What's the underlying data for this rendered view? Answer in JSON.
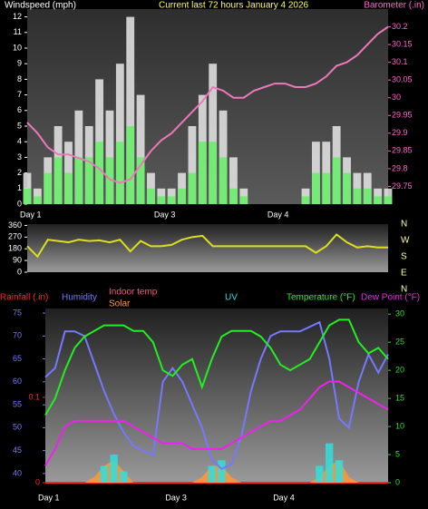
{
  "chart_data": [
    {
      "type": "bar",
      "title": "Current last 72 hours January 4 2026",
      "y_label": "Windspeed (mph)",
      "y2_label": "Barometer (.in)",
      "categories": [
        "Day 1",
        null,
        null,
        null,
        null,
        null,
        null,
        null,
        null,
        null,
        null,
        null,
        null,
        "Day 3",
        null,
        null,
        null,
        null,
        null,
        null,
        null,
        null,
        null,
        null,
        "Day 4",
        null,
        null,
        null,
        null,
        null,
        null,
        null,
        null,
        null,
        null,
        null
      ],
      "ylim": [
        0,
        12.5
      ],
      "yticks": [
        0,
        1,
        2,
        3,
        4,
        5,
        6,
        7,
        8,
        9,
        10,
        11,
        12
      ],
      "y_color": "#ffffff",
      "y2lim": [
        29.7,
        30.25
      ],
      "y2ticks": [
        29.75,
        29.8,
        29.85,
        29.9,
        29.95,
        30,
        30.05,
        30.1,
        30.15,
        30.2
      ],
      "y2_color": "#ff66cc",
      "series": [
        {
          "style": "bar",
          "color": "#e8e8e8",
          "values": [
            2,
            1,
            3,
            5,
            4,
            6,
            5,
            8,
            6,
            9,
            12,
            7,
            2,
            1,
            1,
            2,
            5,
            7,
            9,
            6,
            3,
            1,
            0,
            0,
            0,
            0,
            0,
            1,
            4,
            4,
            5,
            3,
            2,
            2,
            1,
            1
          ]
        },
        {
          "style": "bar",
          "color": "#66ee66",
          "values": [
            1,
            0.5,
            2,
            3,
            2,
            3,
            3,
            4,
            3,
            4,
            5,
            3,
            1,
            0.5,
            0.5,
            1,
            2,
            4,
            4,
            3,
            1,
            0.5,
            0,
            0,
            0,
            0,
            0,
            0.5,
            2,
            2,
            3,
            2,
            1,
            1,
            0.5,
            0.5
          ]
        },
        {
          "style": "line",
          "axis": "y2",
          "color": "#ee77bb",
          "values": [
            29.93,
            29.9,
            29.86,
            29.84,
            29.84,
            29.83,
            29.82,
            29.8,
            29.77,
            29.76,
            29.77,
            29.81,
            29.85,
            29.88,
            29.9,
            29.93,
            29.96,
            29.99,
            30.03,
            30.02,
            30.0,
            30.0,
            30.02,
            30.03,
            30.04,
            30.04,
            30.03,
            30.03,
            30.04,
            30.06,
            30.09,
            30.1,
            30.12,
            30.15,
            30.18,
            30.2
          ]
        }
      ]
    },
    {
      "type": "line",
      "categories": [
        "Day 1",
        null,
        null,
        null,
        null,
        null,
        null,
        null,
        null,
        null,
        null,
        null,
        null,
        "Day 3",
        null,
        null,
        null,
        null,
        null,
        null,
        null,
        null,
        null,
        null,
        "Day 4",
        null,
        null,
        null,
        null,
        null,
        null,
        null,
        null,
        null,
        null,
        null
      ],
      "ylim": [
        0,
        370
      ],
      "yticks": [
        0,
        90,
        180,
        270,
        360
      ],
      "y_color": "#ffffff",
      "compass": [
        "N",
        "W",
        "S",
        "E",
        "N"
      ],
      "compass_color": "#ffff99",
      "series": [
        {
          "style": "line",
          "color": "#dddd22",
          "values": [
            200,
            120,
            250,
            240,
            230,
            250,
            240,
            245,
            230,
            250,
            160,
            240,
            200,
            200,
            210,
            250,
            270,
            280,
            200,
            200,
            200,
            200,
            200,
            200,
            200,
            200,
            200,
            200,
            150,
            200,
            290,
            230,
            190,
            200,
            190,
            190
          ]
        }
      ]
    },
    {
      "type": "line",
      "categories": [
        "Day 1",
        null,
        null,
        null,
        null,
        null,
        null,
        null,
        null,
        null,
        null,
        null,
        null,
        "Day 3",
        null,
        null,
        null,
        null,
        null,
        null,
        null,
        null,
        null,
        null,
        "Day 4",
        null,
        null,
        null,
        null,
        null,
        null,
        null,
        null,
        null,
        null,
        null
      ],
      "ylim": [
        38,
        76
      ],
      "yticks": [
        40,
        45,
        50,
        55,
        60,
        65,
        70,
        75
      ],
      "y_color": "#7777ff",
      "y2lim": [
        0,
        31
      ],
      "y2ticks": [
        0,
        5,
        10,
        15,
        20,
        25,
        30
      ],
      "y2_color": "#33dd33",
      "y3lim": [
        0,
        0.204
      ],
      "y3ticks": [
        0,
        0.1
      ],
      "y3_color": "#ff2222",
      "extra_labels": [
        {
          "text": "Indoor temp",
          "color": "#ff5577"
        }
      ],
      "series": [
        {
          "name": "Rainfall (.in)",
          "style": "line",
          "axis": "y3",
          "color": "#ff2222",
          "values": [
            0,
            0,
            0,
            0,
            0,
            0,
            0,
            0,
            0,
            0,
            0,
            0,
            0,
            0,
            0,
            0,
            0,
            0,
            0,
            0,
            0,
            0,
            0,
            0,
            0,
            0,
            0,
            0,
            0,
            0,
            0,
            0,
            0,
            0,
            0,
            0
          ]
        },
        {
          "name": "Solar",
          "style": "area",
          "axis": "y2",
          "color": "#ff9933",
          "values": [
            0,
            0,
            0,
            0,
            0,
            1,
            3,
            4,
            2,
            0,
            0,
            0,
            0,
            0,
            0,
            0,
            1,
            3,
            3,
            1,
            0,
            0,
            0,
            0,
            0,
            0,
            0,
            0,
            1,
            3,
            4,
            1,
            0,
            0,
            0,
            0
          ]
        },
        {
          "name": "UV",
          "style": "bar",
          "axis": "y2",
          "color": "#33dddd",
          "values": [
            0,
            0,
            0,
            0,
            0,
            0,
            3,
            5,
            2,
            0,
            0,
            0,
            0,
            0,
            0,
            0,
            0,
            3,
            4,
            0,
            0,
            0,
            0,
            0,
            0,
            0,
            0,
            0,
            3,
            7,
            4,
            0,
            0,
            0,
            0,
            0
          ]
        },
        {
          "name": "Humidity",
          "style": "line",
          "color": "#7777ff",
          "values": [
            61,
            63,
            71,
            71,
            70,
            64,
            58,
            53,
            49,
            46,
            45,
            44,
            60,
            63,
            60,
            55,
            50,
            43,
            41,
            42,
            48,
            58,
            65,
            70,
            71,
            71,
            71,
            72,
            73,
            65,
            52,
            50,
            60,
            66,
            62,
            66
          ]
        },
        {
          "name": "Temperature (°F)",
          "style": "line",
          "axis": "y2",
          "color": "#22ee22",
          "values": [
            12,
            15,
            20,
            24,
            26,
            27,
            28,
            28,
            28,
            27,
            27,
            25,
            20,
            19,
            21,
            22,
            17,
            22,
            26,
            27,
            27,
            27,
            26,
            24,
            21,
            20,
            21,
            22,
            25,
            28,
            29,
            29,
            25,
            23,
            24,
            22
          ]
        },
        {
          "name": "Dew Point (°F)",
          "style": "line",
          "axis": "y2",
          "color": "#ee22ee",
          "values": [
            3,
            6,
            10,
            11,
            11,
            11,
            11,
            11,
            11,
            10,
            9,
            8,
            7,
            7,
            7,
            6,
            6,
            6,
            6,
            7,
            8,
            9,
            10,
            11,
            11,
            12,
            13,
            15,
            17,
            18,
            18,
            17,
            16,
            15,
            14,
            13
          ]
        }
      ]
    }
  ]
}
